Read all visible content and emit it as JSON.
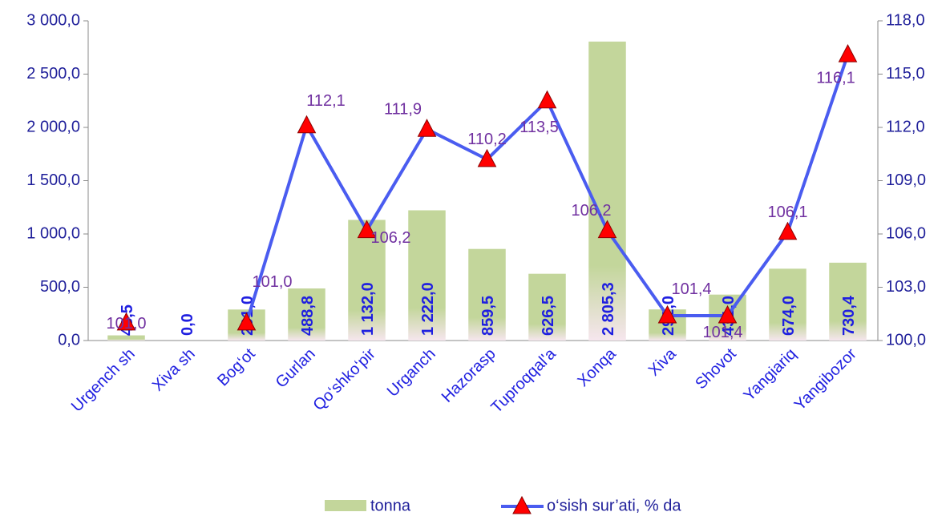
{
  "chart_data": {
    "type": "combo",
    "categories": [
      "Urgench sh",
      "Xiva sh",
      "Bog‘ot",
      "Gurlan",
      "Qo‘shko‘pir",
      "Urganch",
      "Hazorasp",
      "Tuproqqal'a",
      "Xonqa",
      "Xiva",
      "Shovot",
      "Yangiariq",
      "Yangibozor"
    ],
    "series": [
      {
        "name": "tonna",
        "type": "bar",
        "color": "#c3d69b",
        "values": [
          48.5,
          0.0,
          291.0,
          488.8,
          1132.0,
          1222.0,
          859.5,
          626.5,
          2805.3,
          292.0,
          431.0,
          674.0,
          730.4
        ],
        "value_labels": [
          "48,5",
          "0,0",
          "291,0",
          "488,8",
          "1 132,0",
          "1 222,0",
          "859,5",
          "626,5",
          "2 805,3",
          "292,0",
          "431,0",
          "674,0",
          "730,4"
        ]
      },
      {
        "name": "o‘sish sur’ati, % da",
        "type": "line",
        "axis": "y2",
        "color": "#4a5cf0",
        "marker_color": "#ff0000",
        "values": [
          101.0,
          null,
          101.0,
          112.1,
          106.2,
          111.9,
          110.2,
          113.5,
          106.2,
          101.4,
          101.4,
          106.1,
          116.1
        ],
        "value_labels": [
          "101,0",
          null,
          "101,0",
          "112,1",
          "106,2",
          "111,9",
          "110,2",
          "113,5",
          "106,2",
          "101,4",
          "101,4",
          "106,1",
          "116,1"
        ]
      }
    ],
    "ylim": [
      0,
      3000
    ],
    "yticks": [
      {
        "value": 0,
        "label": "0,0"
      },
      {
        "value": 500,
        "label": "500,0"
      },
      {
        "value": 1000,
        "label": "1 000,0"
      },
      {
        "value": 1500,
        "label": "1 500,0"
      },
      {
        "value": 2000,
        "label": "2 000,0"
      },
      {
        "value": 2500,
        "label": "2 500,0"
      },
      {
        "value": 3000,
        "label": "3 000,0"
      }
    ],
    "y2lim": [
      100,
      118
    ],
    "y2ticks": [
      {
        "value": 100,
        "label": "100,0"
      },
      {
        "value": 103,
        "label": "103,0"
      },
      {
        "value": 106,
        "label": "106,0"
      },
      {
        "value": 109,
        "label": "109,0"
      },
      {
        "value": 112,
        "label": "112,0"
      },
      {
        "value": 115,
        "label": "115,0"
      },
      {
        "value": 118,
        "label": "118,0"
      }
    ],
    "legend": "bottom"
  }
}
